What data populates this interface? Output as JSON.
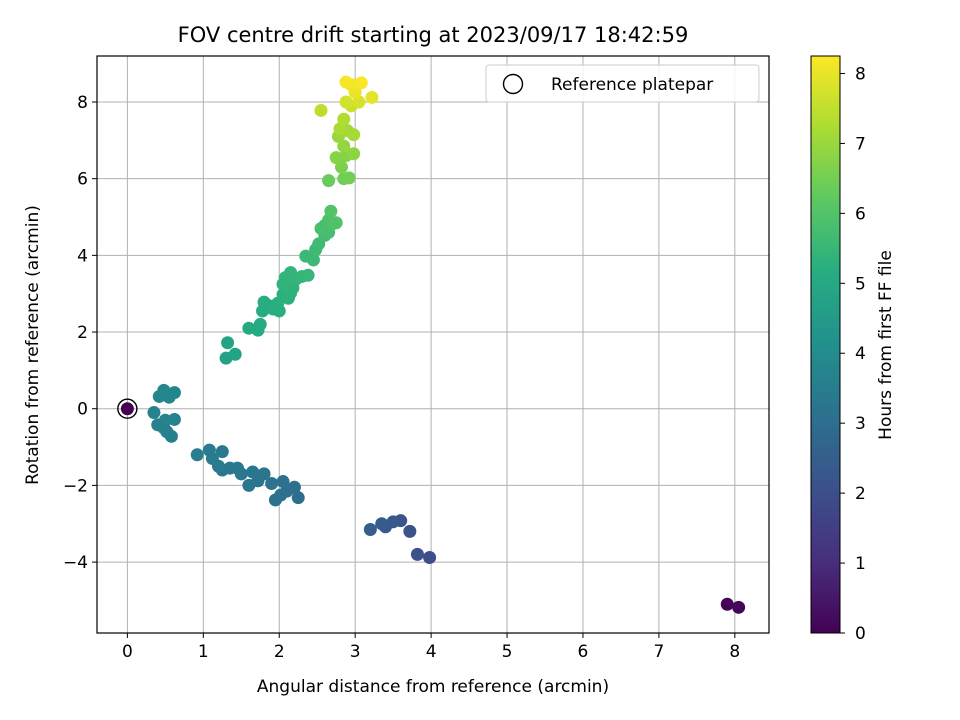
{
  "chart_data": {
    "type": "scatter",
    "title": "FOV centre drift starting at 2023/09/17 18:42:59",
    "xlabel": "Angular distance from reference (arcmin)",
    "ylabel": "Rotation from reference (arcmin)",
    "xlim": [
      -0.4,
      8.45
    ],
    "ylim": [
      -5.85,
      9.2
    ],
    "xticks": [
      0,
      1,
      2,
      3,
      4,
      5,
      6,
      7,
      8
    ],
    "yticks": [
      -4,
      -2,
      0,
      2,
      4,
      6,
      8
    ],
    "grid": true,
    "legend": {
      "position": "top-right",
      "entries": [
        "Reference platepar"
      ]
    },
    "colorbar": {
      "label": "Hours from first FF file",
      "range": [
        0,
        8.25
      ],
      "ticks": [
        0,
        1,
        2,
        3,
        4,
        5,
        6,
        7,
        8
      ],
      "colormap": "viridis"
    },
    "reference_point": {
      "x": 0,
      "y": 0,
      "c": 0
    },
    "points": [
      {
        "x": 7.9,
        "y": -5.1,
        "c": 0.05
      },
      {
        "x": 8.05,
        "y": -5.18,
        "c": 0.15
      },
      {
        "x": 3.98,
        "y": -3.88,
        "c": 2.0
      },
      {
        "x": 3.82,
        "y": -3.8,
        "c": 2.08
      },
      {
        "x": 3.72,
        "y": -3.2,
        "c": 2.15
      },
      {
        "x": 3.6,
        "y": -2.92,
        "c": 2.2
      },
      {
        "x": 3.5,
        "y": -2.95,
        "c": 2.27
      },
      {
        "x": 3.4,
        "y": -3.08,
        "c": 2.32
      },
      {
        "x": 3.35,
        "y": -3.0,
        "c": 2.4
      },
      {
        "x": 3.2,
        "y": -3.15,
        "c": 2.47
      },
      {
        "x": 2.25,
        "y": -2.32,
        "c": 3.0
      },
      {
        "x": 2.2,
        "y": -2.05,
        "c": 3.02
      },
      {
        "x": 2.1,
        "y": -2.15,
        "c": 3.05
      },
      {
        "x": 2.05,
        "y": -1.9,
        "c": 3.08
      },
      {
        "x": 1.95,
        "y": -2.38,
        "c": 3.1
      },
      {
        "x": 2.02,
        "y": -2.25,
        "c": 3.12
      },
      {
        "x": 1.9,
        "y": -1.95,
        "c": 3.15
      },
      {
        "x": 1.8,
        "y": -1.7,
        "c": 3.18
      },
      {
        "x": 1.72,
        "y": -1.88,
        "c": 3.2
      },
      {
        "x": 1.6,
        "y": -2.0,
        "c": 3.22
      },
      {
        "x": 1.65,
        "y": -1.65,
        "c": 3.25
      },
      {
        "x": 1.5,
        "y": -1.7,
        "c": 3.28
      },
      {
        "x": 1.45,
        "y": -1.55,
        "c": 3.3
      },
      {
        "x": 1.35,
        "y": -1.55,
        "c": 3.32
      },
      {
        "x": 1.25,
        "y": -1.6,
        "c": 3.35
      },
      {
        "x": 1.2,
        "y": -1.5,
        "c": 3.38
      },
      {
        "x": 1.25,
        "y": -1.12,
        "c": 3.4
      },
      {
        "x": 1.12,
        "y": -1.3,
        "c": 3.42
      },
      {
        "x": 1.08,
        "y": -1.08,
        "c": 3.45
      },
      {
        "x": 0.92,
        "y": -1.2,
        "c": 3.48
      },
      {
        "x": 0.58,
        "y": -0.72,
        "c": 3.55
      },
      {
        "x": 0.52,
        "y": -0.6,
        "c": 3.58
      },
      {
        "x": 0.48,
        "y": -0.5,
        "c": 3.6
      },
      {
        "x": 0.4,
        "y": -0.42,
        "c": 3.62
      },
      {
        "x": 0.62,
        "y": -0.28,
        "c": 3.65
      },
      {
        "x": 0.35,
        "y": -0.1,
        "c": 3.68
      },
      {
        "x": 0.5,
        "y": -0.3,
        "c": 3.7
      },
      {
        "x": 0.55,
        "y": 0.3,
        "c": 3.75
      },
      {
        "x": 0.42,
        "y": 0.32,
        "c": 3.78
      },
      {
        "x": 0.62,
        "y": 0.42,
        "c": 3.8
      },
      {
        "x": 0.48,
        "y": 0.48,
        "c": 3.82
      },
      {
        "x": 1.3,
        "y": 1.32,
        "c": 4.75
      },
      {
        "x": 1.42,
        "y": 1.42,
        "c": 4.8
      },
      {
        "x": 1.32,
        "y": 1.72,
        "c": 4.85
      },
      {
        "x": 1.6,
        "y": 2.1,
        "c": 5.0
      },
      {
        "x": 1.72,
        "y": 2.05,
        "c": 5.05
      },
      {
        "x": 1.75,
        "y": 2.2,
        "c": 5.08
      },
      {
        "x": 1.78,
        "y": 2.55,
        "c": 5.1
      },
      {
        "x": 1.85,
        "y": 2.7,
        "c": 5.12
      },
      {
        "x": 1.8,
        "y": 2.78,
        "c": 5.15
      },
      {
        "x": 1.92,
        "y": 2.6,
        "c": 5.18
      },
      {
        "x": 2.0,
        "y": 2.55,
        "c": 5.2
      },
      {
        "x": 1.98,
        "y": 2.75,
        "c": 5.22
      },
      {
        "x": 2.05,
        "y": 2.98,
        "c": 5.25
      },
      {
        "x": 2.12,
        "y": 2.88,
        "c": 5.28
      },
      {
        "x": 2.15,
        "y": 3.02,
        "c": 5.3
      },
      {
        "x": 2.18,
        "y": 3.15,
        "c": 5.32
      },
      {
        "x": 2.05,
        "y": 3.25,
        "c": 5.35
      },
      {
        "x": 2.08,
        "y": 3.42,
        "c": 5.38
      },
      {
        "x": 2.15,
        "y": 3.55,
        "c": 5.4
      },
      {
        "x": 2.22,
        "y": 3.38,
        "c": 5.42
      },
      {
        "x": 2.3,
        "y": 3.45,
        "c": 5.45
      },
      {
        "x": 2.38,
        "y": 3.48,
        "c": 5.48
      },
      {
        "x": 2.35,
        "y": 3.98,
        "c": 5.55
      },
      {
        "x": 2.45,
        "y": 3.88,
        "c": 5.58
      },
      {
        "x": 2.48,
        "y": 4.15,
        "c": 5.62
      },
      {
        "x": 2.52,
        "y": 4.3,
        "c": 5.65
      },
      {
        "x": 2.6,
        "y": 4.52,
        "c": 5.7
      },
      {
        "x": 2.65,
        "y": 4.6,
        "c": 5.75
      },
      {
        "x": 2.6,
        "y": 4.78,
        "c": 5.8
      },
      {
        "x": 2.55,
        "y": 4.7,
        "c": 5.82
      },
      {
        "x": 2.65,
        "y": 4.92,
        "c": 5.88
      },
      {
        "x": 2.7,
        "y": 4.82,
        "c": 5.92
      },
      {
        "x": 2.75,
        "y": 4.85,
        "c": 5.95
      },
      {
        "x": 2.68,
        "y": 5.15,
        "c": 6.0
      },
      {
        "x": 2.65,
        "y": 5.95,
        "c": 6.35
      },
      {
        "x": 2.85,
        "y": 6.0,
        "c": 6.45
      },
      {
        "x": 2.92,
        "y": 6.02,
        "c": 6.5
      },
      {
        "x": 2.82,
        "y": 6.3,
        "c": 6.6
      },
      {
        "x": 2.88,
        "y": 6.6,
        "c": 6.7
      },
      {
        "x": 2.75,
        "y": 6.55,
        "c": 6.75
      },
      {
        "x": 2.98,
        "y": 6.65,
        "c": 6.85
      },
      {
        "x": 2.85,
        "y": 6.85,
        "c": 6.9
      },
      {
        "x": 2.78,
        "y": 7.1,
        "c": 7.0
      },
      {
        "x": 2.9,
        "y": 7.25,
        "c": 7.1
      },
      {
        "x": 2.98,
        "y": 7.15,
        "c": 7.15
      },
      {
        "x": 2.8,
        "y": 7.3,
        "c": 7.2
      },
      {
        "x": 2.85,
        "y": 7.55,
        "c": 7.3
      },
      {
        "x": 2.55,
        "y": 7.78,
        "c": 7.45
      },
      {
        "x": 2.95,
        "y": 7.9,
        "c": 7.6
      },
      {
        "x": 2.88,
        "y": 8.0,
        "c": 7.7
      },
      {
        "x": 3.05,
        "y": 8.0,
        "c": 7.8
      },
      {
        "x": 3.22,
        "y": 8.12,
        "c": 7.95
      },
      {
        "x": 3.0,
        "y": 8.25,
        "c": 8.0
      },
      {
        "x": 2.95,
        "y": 8.45,
        "c": 8.1
      },
      {
        "x": 2.88,
        "y": 8.52,
        "c": 8.15
      },
      {
        "x": 3.08,
        "y": 8.5,
        "c": 8.2
      }
    ]
  }
}
